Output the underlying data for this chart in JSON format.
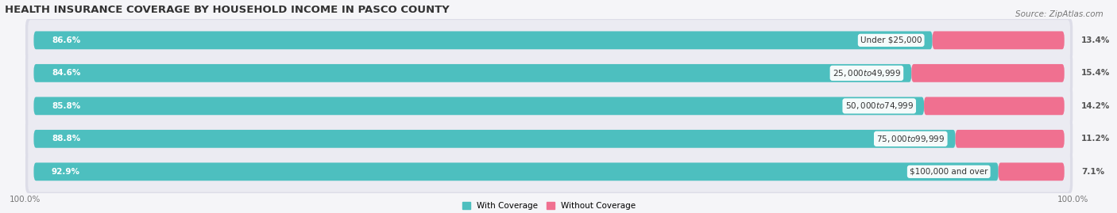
{
  "title": "HEALTH INSURANCE COVERAGE BY HOUSEHOLD INCOME IN PASCO COUNTY",
  "source": "Source: ZipAtlas.com",
  "categories": [
    "Under $25,000",
    "$25,000 to $49,999",
    "$50,000 to $74,999",
    "$75,000 to $99,999",
    "$100,000 and over"
  ],
  "with_coverage": [
    86.6,
    84.6,
    85.8,
    88.8,
    92.9
  ],
  "without_coverage": [
    13.4,
    15.4,
    14.2,
    11.2,
    7.1
  ],
  "color_with": "#4dbfbf",
  "color_without": "#f07090",
  "color_row_bg": "#e8e8ee",
  "legend_with": "With Coverage",
  "legend_without": "Without Coverage",
  "title_fontsize": 9.5,
  "source_fontsize": 7.5,
  "bar_label_fontsize": 7.5,
  "cat_label_fontsize": 7.5,
  "tick_fontsize": 7.5,
  "fig_bg": "#f5f5f8"
}
